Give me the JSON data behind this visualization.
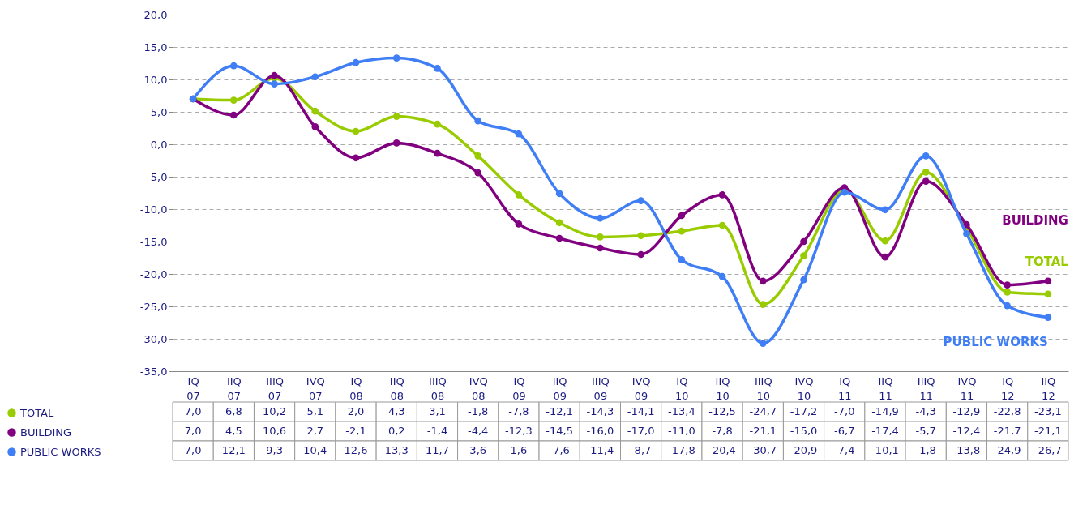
{
  "chart_data": {
    "type": "line",
    "categories": [
      "IQ 07",
      "IIQ 07",
      "IIIQ 07",
      "IVQ 07",
      "IQ 08",
      "IIQ 08",
      "IIIQ 08",
      "IVQ 08",
      "IQ 09",
      "IIQ 09",
      "IIIQ 09",
      "IVQ 09",
      "IQ 10",
      "IIQ 10",
      "IIIQ 10",
      "IVQ 10",
      "IQ 11",
      "IIQ 11",
      "IIIQ 11",
      "IVQ 11",
      "IQ 12",
      "IIQ 12"
    ],
    "series": [
      {
        "name": "TOTAL",
        "color": "#99cc00",
        "values": [
          7.0,
          6.8,
          10.2,
          5.1,
          2.0,
          4.3,
          3.1,
          -1.8,
          -7.8,
          -12.1,
          -14.3,
          -14.1,
          -13.4,
          -12.5,
          -24.7,
          -17.2,
          -7.0,
          -14.9,
          -4.3,
          -12.9,
          -22.8,
          -23.1
        ],
        "value_labels": [
          "7,0",
          "6,8",
          "10,2",
          "5,1",
          "2,0",
          "4,3",
          "3,1",
          "-1,8",
          "-7,8",
          "-12,1",
          "-14,3",
          "-14,1",
          "-13,4",
          "-12,5",
          "-24,7",
          "-17,2",
          "-7,0",
          "-14,9",
          "-4,3",
          "-12,9",
          "-22,8",
          "-23,1"
        ]
      },
      {
        "name": "BUILDING",
        "color": "#800080",
        "values": [
          7.0,
          4.5,
          10.6,
          2.7,
          -2.1,
          0.2,
          -1.4,
          -4.4,
          -12.3,
          -14.5,
          -16.0,
          -17.0,
          -11.0,
          -7.8,
          -21.1,
          -15.0,
          -6.7,
          -17.4,
          -5.7,
          -12.4,
          -21.7,
          -21.1
        ],
        "value_labels": [
          "7,0",
          "4,5",
          "10,6",
          "2,7",
          "-2,1",
          "0,2",
          "-1,4",
          "-4,4",
          "-12,3",
          "-14,5",
          "-16,0",
          "-17,0",
          "-11,0",
          "-7,8",
          "-21,1",
          "-15,0",
          "-6,7",
          "-17,4",
          "-5,7",
          "-12,4",
          "-21,7",
          "-21,1"
        ]
      },
      {
        "name": "PUBLIC WORKS",
        "color": "#3f7ef5",
        "values": [
          7.0,
          12.1,
          9.3,
          10.4,
          12.6,
          13.3,
          11.7,
          3.6,
          1.6,
          -7.6,
          -11.4,
          -8.7,
          -17.8,
          -20.4,
          -30.7,
          -20.9,
          -7.4,
          -10.1,
          -1.8,
          -13.8,
          -24.9,
          -26.7
        ],
        "value_labels": [
          "7,0",
          "12,1",
          "9,3",
          "10,4",
          "12,6",
          "13,3",
          "11,7",
          "3,6",
          "1,6",
          "-7,6",
          "-11,4",
          "-8,7",
          "-17,8",
          "-20,4",
          "-30,7",
          "-20,9",
          "-7,4",
          "-10,1",
          "-1,8",
          "-13,8",
          "-24,9",
          "-26,7"
        ]
      }
    ],
    "ylim": [
      -35,
      20
    ],
    "yticks": [
      {
        "value": -35,
        "label": "-35,0"
      },
      {
        "value": -30,
        "label": "-30,0"
      },
      {
        "value": -25,
        "label": "-25,0"
      },
      {
        "value": -20,
        "label": "-20,0"
      },
      {
        "value": -15,
        "label": "-15,0"
      },
      {
        "value": -10,
        "label": "-10,0"
      },
      {
        "value": -5,
        "label": "-5,0"
      },
      {
        "value": 0,
        "label": "0,0"
      },
      {
        "value": 5,
        "label": "5,0"
      },
      {
        "value": 10,
        "label": "10,0"
      },
      {
        "value": 15,
        "label": "15,0"
      },
      {
        "value": 20,
        "label": "20,0"
      }
    ],
    "grid": "y",
    "marker": "circle",
    "line_style": "solid",
    "legend": "bottom left"
  }
}
